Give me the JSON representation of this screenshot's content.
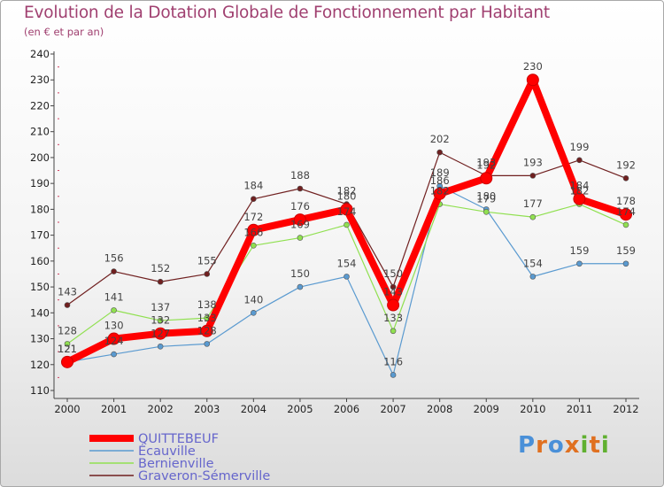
{
  "brand": {
    "name": "Proxiti",
    "colors": [
      "#4a90d8",
      "#e07020",
      "#60b030"
    ]
  },
  "chart_data": {
    "type": "line",
    "title": "Evolution de la Dotation Globale de Fonctionnement par Habitant",
    "subtitle": "(en € et par an)",
    "xlabel": "",
    "ylabel": "",
    "x": [
      "2000",
      "2001",
      "2002",
      "2003",
      "2004",
      "2005",
      "2006",
      "2007",
      "2008",
      "2009",
      "2010",
      "2011",
      "2012"
    ],
    "ylim": [
      110,
      240
    ],
    "yticks": [
      110,
      120,
      130,
      140,
      150,
      160,
      170,
      180,
      190,
      200,
      210,
      220,
      230,
      240
    ],
    "grid": false,
    "legend_position": "bottom-left",
    "series": [
      {
        "name": "QUITTEBEUF",
        "color": "#ff0000",
        "values": [
          121,
          130,
          132,
          133,
          172,
          176,
          180,
          143,
          186,
          192,
          230,
          184,
          178
        ],
        "labels": [
          "121",
          "130",
          "132",
          "133",
          "172",
          "176",
          "180",
          "143",
          "186",
          "192",
          "230",
          "184",
          "178"
        ]
      },
      {
        "name": "Écauville",
        "color": "#5a9ad0",
        "values": [
          121,
          124,
          127,
          128,
          140,
          150,
          154,
          116,
          189,
          180,
          154,
          159,
          159
        ],
        "labels": [
          "121",
          "124",
          "127",
          "128",
          "140",
          "150",
          "154",
          "116",
          "189",
          "180",
          "154",
          "159",
          "159"
        ]
      },
      {
        "name": "Bernienville",
        "color": "#90e050",
        "values": [
          128,
          141,
          137,
          138,
          166,
          169,
          174,
          133,
          182,
          179,
          177,
          182,
          174
        ],
        "labels": [
          "128",
          "141",
          "137",
          "138",
          "166",
          "169",
          "174",
          "133",
          "182",
          "179",
          "177",
          "182",
          "174"
        ]
      },
      {
        "name": "Graveron-Sémerville",
        "color": "#702020",
        "values": [
          143,
          156,
          152,
          155,
          184,
          188,
          182,
          150,
          202,
          193,
          193,
          199,
          192
        ],
        "labels": [
          "143",
          "156",
          "152",
          "155",
          "184",
          "188",
          "182",
          "150",
          "202",
          "193",
          "193",
          "199",
          "192"
        ]
      }
    ]
  }
}
